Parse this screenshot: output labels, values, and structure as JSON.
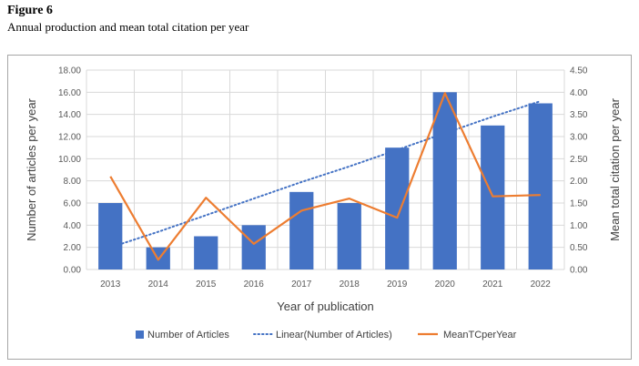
{
  "figure": {
    "label": "Figure 6",
    "caption": "Annual production and mean total citation per year"
  },
  "chart_data": {
    "type": "bar",
    "categories": [
      "2013",
      "2014",
      "2015",
      "2016",
      "2017",
      "2018",
      "2019",
      "2020",
      "2021",
      "2022"
    ],
    "series": [
      {
        "name": "Number of Articles",
        "type": "bar",
        "axis": "left",
        "color": "#4472c4",
        "values": [
          6,
          2,
          3,
          4,
          7,
          6,
          11,
          16,
          13,
          15
        ]
      },
      {
        "name": "Linear(Number of Articles)",
        "type": "trendline",
        "axis": "left",
        "color": "#4472c4",
        "values": [
          2.0,
          3.4,
          4.9,
          6.4,
          7.9,
          9.3,
          10.8,
          12.3,
          13.8,
          15.2
        ]
      },
      {
        "name": "MeanTCperYear",
        "type": "line",
        "axis": "right",
        "color": "#ed7d31",
        "values": [
          2.1,
          0.22,
          1.62,
          0.58,
          1.33,
          1.6,
          1.17,
          3.98,
          1.65,
          1.68
        ]
      }
    ],
    "xlabel": "Year of publication",
    "ylabel": "Number of articles per year",
    "y2label": "Mean total citation per year",
    "ylim": [
      0,
      18
    ],
    "y2lim": [
      0,
      4.5
    ],
    "yticks": [
      "0.00",
      "2.00",
      "4.00",
      "6.00",
      "8.00",
      "10.00",
      "12.00",
      "14.00",
      "16.00",
      "18.00"
    ],
    "y2ticks": [
      "0.00",
      "0.50",
      "1.00",
      "1.50",
      "2.00",
      "2.50",
      "3.00",
      "3.50",
      "4.00",
      "4.50"
    ],
    "grid": true,
    "legend": "bottom"
  }
}
